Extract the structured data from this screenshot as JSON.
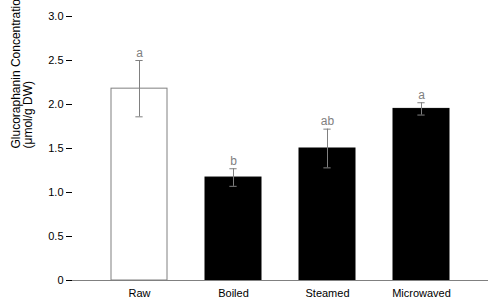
{
  "chart_data": {
    "type": "bar",
    "categories": [
      "Raw",
      "Boiled",
      "Steamed",
      "Microwaved"
    ],
    "values": [
      2.18,
      1.17,
      1.5,
      1.95
    ],
    "errors": [
      0.32,
      0.1,
      0.22,
      0.07
    ],
    "colors": [
      "#ffffff",
      "#000000",
      "#000000",
      "#000000"
    ],
    "letters": [
      "a",
      "b",
      "ab",
      "a"
    ],
    "ylabel": "Glucoraphanin Concentration\n(μmol/g DW)",
    "ylim": [
      0,
      3.0
    ],
    "yticks": [
      0,
      0.5,
      {
        "value": 1.0,
        "label": "1.0"
      },
      1.5,
      {
        "value": 2.0,
        "label": "2.0"
      },
      2.5,
      {
        "value": 3.0,
        "label": "3.0"
      }
    ],
    "grid": false
  }
}
